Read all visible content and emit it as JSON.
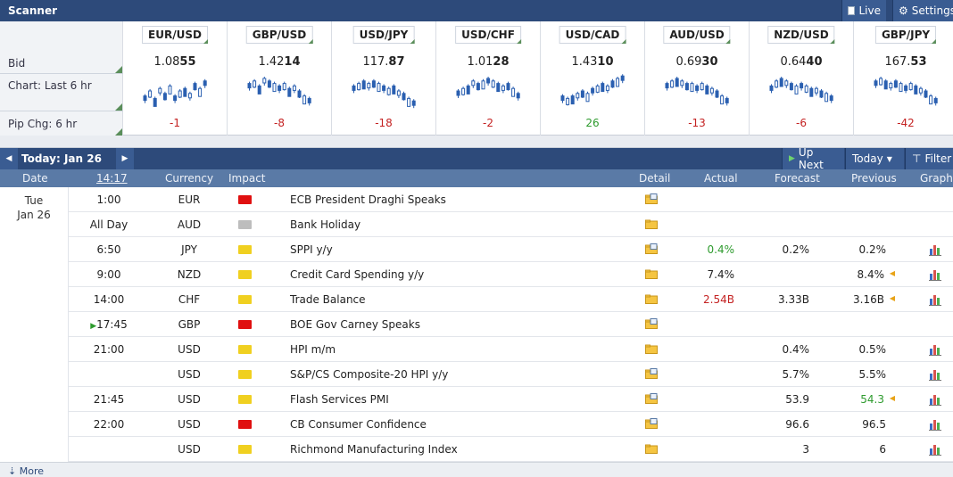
{
  "scanner": {
    "title": "Scanner",
    "live_label": "Live",
    "settings_label": "Settings",
    "row_labels": [
      "Bid",
      "Chart: Last 6 hr",
      "Pip Chg: 6 hr"
    ],
    "pairs": [
      {
        "name": "EUR/USD",
        "bid_a": "1.08",
        "bid_b": "55",
        "chg": "-1",
        "chg_color": "#c42222"
      },
      {
        "name": "GBP/USD",
        "bid_a": "1.42",
        "bid_b": "14",
        "chg": "-8",
        "chg_color": "#c42222"
      },
      {
        "name": "USD/JPY",
        "bid_a": "117.",
        "bid_b": "87",
        "chg": "-18",
        "chg_color": "#c42222"
      },
      {
        "name": "USD/CHF",
        "bid_a": "1.01",
        "bid_b": "28",
        "chg": "-2",
        "chg_color": "#c42222"
      },
      {
        "name": "USD/CAD",
        "bid_a": "1.43",
        "bid_b": "10",
        "chg": "26",
        "chg_color": "#2e9b2e"
      },
      {
        "name": "AUD/USD",
        "bid_a": "0.69",
        "bid_b": "30",
        "chg": "-13",
        "chg_color": "#c42222"
      },
      {
        "name": "NZD/USD",
        "bid_a": "0.64",
        "bid_b": "40",
        "chg": "-6",
        "chg_color": "#c42222"
      },
      {
        "name": "GBP/JPY",
        "bid_a": "167.",
        "bid_b": "53",
        "chg": "-42",
        "chg_color": "#c42222"
      }
    ]
  },
  "calendar": {
    "today_label": "Today: Jan 26",
    "up_next_label": "Up Next",
    "today_btn_label": "Today",
    "filter_label": "Filter",
    "columns": {
      "date": "Date",
      "time": "14:17",
      "currency": "Currency",
      "impact": "Impact",
      "detail": "Detail",
      "actual": "Actual",
      "forecast": "Forecast",
      "previous": "Previous",
      "graph": "Graph"
    },
    "date_day": "Tue",
    "date_label": "Jan 26",
    "impact_colors": {
      "high": "#e01010",
      "medium": "#f0d020",
      "low": "#bdbdbd"
    },
    "rows": [
      {
        "time": "1:00",
        "currency": "EUR",
        "impact": "high",
        "event": "ECB President Draghi Speaks",
        "actual": "",
        "forecast": "",
        "previous": "",
        "graph": false,
        "detail_icon": "folder-doc"
      },
      {
        "time": "All Day",
        "currency": "AUD",
        "impact": "low",
        "event": "Bank Holiday",
        "actual": "",
        "forecast": "",
        "previous": "",
        "graph": false,
        "detail_icon": "folder"
      },
      {
        "time": "6:50",
        "currency": "JPY",
        "impact": "medium",
        "event": "SPPI y/y",
        "actual": "0.4%",
        "actual_class": "green",
        "forecast": "0.2%",
        "previous": "0.2%",
        "graph": true,
        "detail_icon": "folder-doc"
      },
      {
        "time": "9:00",
        "currency": "NZD",
        "impact": "medium",
        "event": "Credit Card Spending y/y",
        "actual": "7.4%",
        "actual_class": "",
        "forecast": "",
        "previous": "8.4%",
        "revised": true,
        "graph": true,
        "detail_icon": "folder"
      },
      {
        "time": "14:00",
        "currency": "CHF",
        "impact": "medium",
        "event": "Trade Balance",
        "actual": "2.54B",
        "actual_class": "red",
        "forecast": "3.33B",
        "previous": "3.16B",
        "revised": true,
        "graph": true,
        "detail_icon": "folder"
      },
      {
        "time": "17:45",
        "currency": "GBP",
        "impact": "high",
        "event": "BOE Gov Carney Speaks",
        "actual": "",
        "forecast": "",
        "previous": "",
        "graph": false,
        "next": true,
        "detail_icon": "folder-doc"
      },
      {
        "time": "21:00",
        "currency": "USD",
        "impact": "medium",
        "event": "HPI m/m",
        "actual": "",
        "forecast": "0.4%",
        "previous": "0.5%",
        "graph": true,
        "detail_icon": "folder"
      },
      {
        "time": "",
        "currency": "USD",
        "impact": "medium",
        "event": "S&P/CS Composite-20 HPI y/y",
        "actual": "",
        "forecast": "5.7%",
        "previous": "5.5%",
        "graph": true,
        "detail_icon": "folder-doc"
      },
      {
        "time": "21:45",
        "currency": "USD",
        "impact": "medium",
        "event": "Flash Services PMI",
        "actual": "",
        "forecast": "53.9",
        "previous": "54.3",
        "previous_class": "green",
        "revised": true,
        "graph": true,
        "detail_icon": "folder-doc"
      },
      {
        "time": "22:00",
        "currency": "USD",
        "impact": "high",
        "event": "CB Consumer Confidence",
        "actual": "",
        "forecast": "96.6",
        "previous": "96.5",
        "graph": true,
        "detail_icon": "folder-doc"
      },
      {
        "time": "",
        "currency": "USD",
        "impact": "medium",
        "event": "Richmond Manufacturing Index",
        "actual": "",
        "forecast": "3",
        "previous": "6",
        "graph": true,
        "detail_icon": "folder"
      }
    ],
    "more_label": "More"
  }
}
